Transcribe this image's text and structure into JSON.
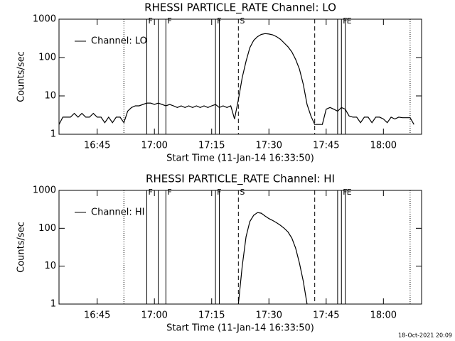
{
  "chart_data": [
    {
      "type": "line",
      "title": "RHESSI PARTICLE_RATE Channel: LO",
      "xlabel": "Start Time (11-Jan-14 16:33:50)",
      "ylabel": "Counts/sec",
      "log_y": true,
      "xlim": [
        "16:35",
        "18:10"
      ],
      "ylim": [
        1,
        1000
      ],
      "yticks": [
        1,
        10,
        100,
        1000
      ],
      "xticks": [
        "16:45",
        "17:00",
        "17:15",
        "17:30",
        "17:45",
        "18:00"
      ],
      "legend": "upper left",
      "markers": [
        {
          "x": "16:52",
          "style": "dotted"
        },
        {
          "x": "16:58",
          "style": "solid"
        },
        {
          "x": "17:01",
          "style": "solid"
        },
        {
          "x": "17:03",
          "style": "solid"
        },
        {
          "x": "17:16",
          "style": "solid"
        },
        {
          "x": "17:17",
          "style": "solid"
        },
        {
          "x": "17:22",
          "style": "dashed"
        },
        {
          "x": "17:42",
          "style": "dashed"
        },
        {
          "x": "17:48",
          "style": "solid"
        },
        {
          "x": "17:49",
          "style": "solid"
        },
        {
          "x": "17:50",
          "style": "solid"
        },
        {
          "x": "18:07",
          "style": "dotted"
        }
      ],
      "annotations": [
        {
          "x": "16:58",
          "text": "F"
        },
        {
          "x": "17:03",
          "text": "F"
        },
        {
          "x": "17:16",
          "text": "F"
        },
        {
          "x": "17:22",
          "text": "S"
        },
        {
          "x": "17:49",
          "text": "F"
        },
        {
          "x": "17:50",
          "text": "E"
        }
      ],
      "x": [
        "16:35",
        "16:36",
        "16:37",
        "16:38",
        "16:39",
        "16:40",
        "16:41",
        "16:42",
        "16:43",
        "16:44",
        "16:45",
        "16:46",
        "16:47",
        "16:48",
        "16:49",
        "16:50",
        "16:51",
        "16:52",
        "16:53",
        "16:54",
        "16:55",
        "16:56",
        "16:57",
        "16:58",
        "16:59",
        "17:00",
        "17:01",
        "17:02",
        "17:03",
        "17:04",
        "17:05",
        "17:06",
        "17:07",
        "17:08",
        "17:09",
        "17:10",
        "17:11",
        "17:12",
        "17:13",
        "17:14",
        "17:15",
        "17:16",
        "17:17",
        "17:18",
        "17:19",
        "17:20",
        "17:21",
        "17:22",
        "17:23",
        "17:24",
        "17:25",
        "17:26",
        "17:27",
        "17:28",
        "17:29",
        "17:30",
        "17:31",
        "17:32",
        "17:33",
        "17:34",
        "17:35",
        "17:36",
        "17:37",
        "17:38",
        "17:39",
        "17:40",
        "17:41",
        "17:42",
        "17:43",
        "17:44",
        "17:45",
        "17:46",
        "17:47",
        "17:48",
        "17:49",
        "17:50",
        "17:51",
        "17:52",
        "17:53",
        "17:54",
        "17:55",
        "17:56",
        "17:57",
        "17:58",
        "17:59",
        "18:00",
        "18:01",
        "18:02",
        "18:03",
        "18:04",
        "18:05",
        "18:06",
        "18:07",
        "18:08"
      ],
      "series": [
        {
          "name": "Channel: LO",
          "color": "#000000",
          "values": [
            1.8,
            2.8,
            2.8,
            2.8,
            3.5,
            2.8,
            3.5,
            2.8,
            2.8,
            3.5,
            2.8,
            2.8,
            2.0,
            2.8,
            2.0,
            2.8,
            2.8,
            2.0,
            4.0,
            5.0,
            5.5,
            5.5,
            6.0,
            6.5,
            6.5,
            6.0,
            6.5,
            6.0,
            5.5,
            6.0,
            5.5,
            5.0,
            5.5,
            5.0,
            5.5,
            5.0,
            5.5,
            5.0,
            5.5,
            5.0,
            5.5,
            6.0,
            5.0,
            5.5,
            5.0,
            5.5,
            2.5,
            8,
            30,
            80,
            180,
            280,
            350,
            400,
            420,
            410,
            390,
            350,
            300,
            240,
            190,
            140,
            90,
            50,
            20,
            6,
            3,
            1.8,
            1.8,
            1.8,
            4.5,
            5,
            4.5,
            4,
            5,
            4.5,
            3,
            2.8,
            2.8,
            2.0,
            2.8,
            2.8,
            2.0,
            2.8,
            2.8,
            2.5,
            2.0,
            2.8,
            2.5,
            2.8,
            2.7,
            2.7,
            2.7,
            1.8
          ]
        }
      ]
    },
    {
      "type": "line",
      "title": "RHESSI PARTICLE_RATE Channel: HI",
      "xlabel": "Start Time (11-Jan-14 16:33:50)",
      "ylabel": "Counts/sec",
      "log_y": true,
      "xlim": [
        "16:35",
        "18:10"
      ],
      "ylim": [
        1,
        1000
      ],
      "yticks": [
        1,
        10,
        100,
        1000
      ],
      "xticks": [
        "16:45",
        "17:00",
        "17:15",
        "17:30",
        "17:45",
        "18:00"
      ],
      "legend": "upper left",
      "markers": [
        {
          "x": "16:52",
          "style": "dotted"
        },
        {
          "x": "16:58",
          "style": "solid"
        },
        {
          "x": "17:01",
          "style": "solid"
        },
        {
          "x": "17:03",
          "style": "solid"
        },
        {
          "x": "17:16",
          "style": "solid"
        },
        {
          "x": "17:17",
          "style": "solid"
        },
        {
          "x": "17:22",
          "style": "dashed"
        },
        {
          "x": "17:42",
          "style": "dashed"
        },
        {
          "x": "17:48",
          "style": "solid"
        },
        {
          "x": "17:49",
          "style": "solid"
        },
        {
          "x": "17:50",
          "style": "solid"
        },
        {
          "x": "18:07",
          "style": "dotted"
        }
      ],
      "annotations": [
        {
          "x": "16:58",
          "text": "F"
        },
        {
          "x": "17:03",
          "text": "F"
        },
        {
          "x": "17:16",
          "text": "F"
        },
        {
          "x": "17:22",
          "text": "S"
        },
        {
          "x": "17:49",
          "text": "F"
        },
        {
          "x": "17:50",
          "text": "E"
        }
      ],
      "x": [
        "17:22",
        "17:23",
        "17:24",
        "17:25",
        "17:26",
        "17:27",
        "17:28",
        "17:29",
        "17:30",
        "17:31",
        "17:32",
        "17:33",
        "17:34",
        "17:35",
        "17:36",
        "17:37",
        "17:38",
        "17:39",
        "17:40"
      ],
      "series": [
        {
          "name": "Channel: HI",
          "color": "#000000",
          "values": [
            1,
            10,
            60,
            150,
            220,
            260,
            250,
            210,
            180,
            160,
            140,
            120,
            100,
            80,
            55,
            30,
            12,
            4,
            1
          ]
        }
      ]
    }
  ],
  "footer": "18-Oct-2021 20:09"
}
